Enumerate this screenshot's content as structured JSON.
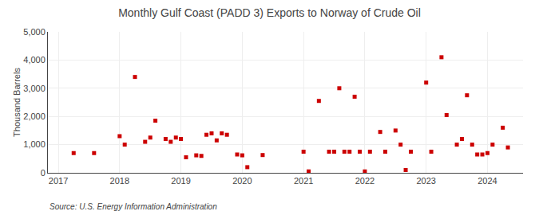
{
  "chart_data": {
    "type": "scatter",
    "title": "Monthly Gulf Coast (PADD 3) Exports to Norway of Crude Oil",
    "ylabel": "Thousand Barrels",
    "source": "Source: U.S. Energy Information Administration",
    "color": "#cc0000",
    "marker": "square",
    "grid": true,
    "ylim": [
      0,
      5000
    ],
    "yticks": [
      0,
      {
        "value": 1000,
        "label": "1,000"
      },
      {
        "value": 2000,
        "label": "2,000"
      },
      {
        "value": 3000,
        "label": "3,000"
      },
      {
        "value": 4000,
        "label": "4,000"
      },
      {
        "value": 5000,
        "label": "5,000"
      }
    ],
    "xlim": [
      2016.83,
      2024.58
    ],
    "xticks": [
      2017,
      2018,
      2019,
      2020,
      2021,
      2022,
      2023,
      2024
    ],
    "x": [
      2017.25,
      2017.583,
      2018.0,
      2018.083,
      2018.25,
      2018.416,
      2018.5,
      2018.583,
      2018.75,
      2018.833,
      2018.917,
      2019.0,
      2019.083,
      2019.25,
      2019.333,
      2019.416,
      2019.5,
      2019.583,
      2019.666,
      2019.75,
      2019.917,
      2020.0,
      2020.083,
      2020.333,
      2021.0,
      2021.083,
      2021.25,
      2021.416,
      2021.5,
      2021.583,
      2021.666,
      2021.75,
      2021.833,
      2021.917,
      2022.0,
      2022.083,
      2022.25,
      2022.333,
      2022.5,
      2022.583,
      2022.666,
      2022.75,
      2023.0,
      2023.083,
      2023.25,
      2023.333,
      2023.5,
      2023.583,
      2023.666,
      2023.75,
      2023.833,
      2023.916,
      2024.0,
      2024.083,
      2024.25,
      2024.333
    ],
    "values": [
      700,
      700,
      1300,
      1000,
      3400,
      1100,
      1250,
      1850,
      1200,
      1100,
      1250,
      1200,
      550,
      620,
      600,
      1350,
      1400,
      1150,
      1400,
      1350,
      650,
      620,
      200,
      630,
      750,
      50,
      2550,
      750,
      750,
      3000,
      750,
      750,
      2700,
      750,
      50,
      750,
      1450,
      750,
      1500,
      1000,
      100,
      750,
      3200,
      750,
      4100,
      2050,
      1000,
      1200,
      2750,
      1000,
      650,
      650,
      700,
      1000,
      1600,
      900
    ]
  }
}
